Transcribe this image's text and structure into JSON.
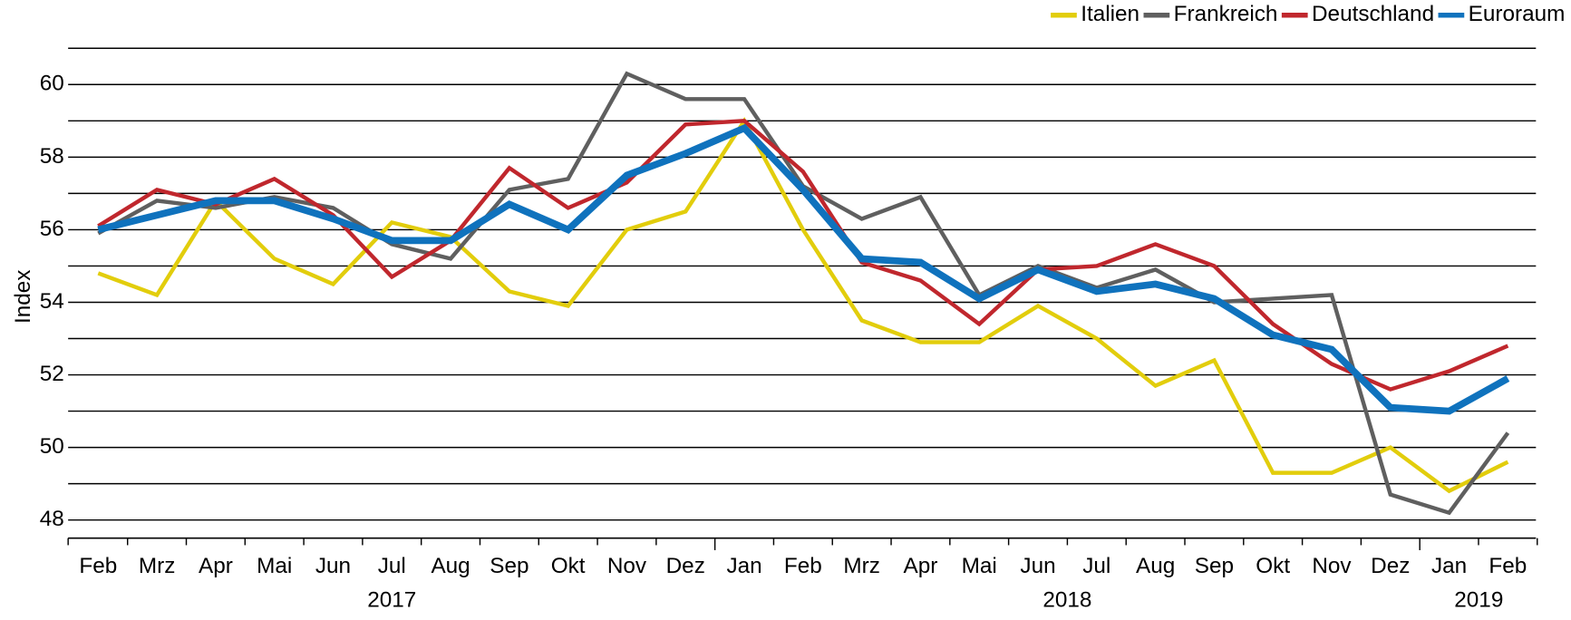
{
  "chart_data": {
    "type": "line",
    "y_label": "Index",
    "categories": [
      "Feb",
      "Mrz",
      "Apr",
      "Mai",
      "Jun",
      "Jul",
      "Aug",
      "Sep",
      "Okt",
      "Nov",
      "Dez",
      "Jan",
      "Feb",
      "Mrz",
      "Apr",
      "Mai",
      "Jun",
      "Jul",
      "Aug",
      "Sep",
      "Okt",
      "Nov",
      "Dez",
      "Jan",
      "Feb"
    ],
    "years": [
      "2017",
      "2018",
      "2019"
    ],
    "series": [
      {
        "name": "Italien",
        "color": "#e2cd0c",
        "width": 4,
        "values": [
          54.8,
          54.2,
          56.8,
          55.2,
          54.5,
          56.2,
          55.8,
          54.3,
          53.9,
          56.0,
          56.5,
          59.0,
          56.0,
          53.5,
          52.9,
          52.9,
          53.9,
          53.0,
          51.7,
          52.4,
          49.3,
          49.3,
          50.0,
          48.8,
          49.6
        ]
      },
      {
        "name": "Frankreich",
        "color": "#5f5f5f",
        "width": 4,
        "values": [
          55.9,
          56.8,
          56.6,
          56.9,
          56.6,
          55.6,
          55.2,
          57.1,
          57.4,
          60.3,
          59.6,
          59.6,
          57.2,
          56.3,
          56.9,
          54.2,
          55.0,
          54.4,
          54.9,
          54.0,
          54.1,
          54.2,
          48.7,
          48.2,
          50.4
        ]
      },
      {
        "name": "Deutschland",
        "color": "#c0272d",
        "width": 4,
        "values": [
          56.1,
          57.1,
          56.7,
          57.4,
          56.4,
          54.7,
          55.7,
          57.7,
          56.6,
          57.3,
          58.9,
          59.0,
          57.6,
          55.1,
          54.6,
          53.4,
          54.9,
          55.0,
          55.6,
          55.0,
          53.4,
          52.3,
          51.6,
          52.1,
          52.8
        ]
      },
      {
        "name": "Euroraum",
        "color": "#0f72bd",
        "width": 7,
        "values": [
          56.0,
          56.4,
          56.8,
          56.8,
          56.3,
          55.7,
          55.7,
          56.7,
          56.0,
          57.5,
          58.1,
          58.8,
          57.1,
          55.2,
          55.1,
          54.1,
          54.9,
          54.3,
          54.5,
          54.1,
          53.1,
          52.7,
          51.1,
          51.0,
          51.9
        ]
      }
    ],
    "ylim": [
      47.5,
      61
    ],
    "yticks": [
      48,
      50,
      52,
      54,
      56,
      58,
      60
    ],
    "minor_yticks": [
      49,
      51,
      53,
      55,
      57,
      59,
      61
    ],
    "grid": true,
    "legend": "top-right"
  }
}
